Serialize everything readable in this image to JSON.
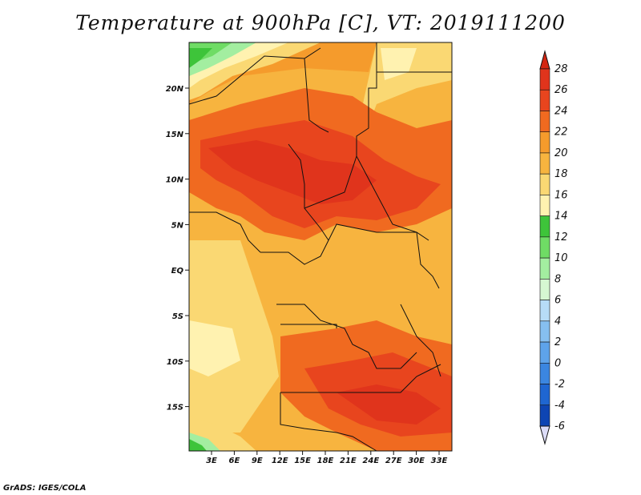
{
  "title": "Temperature at 900hPa [C], VT: 2019111200",
  "credit": "GrADS: IGES/COLA",
  "map": {
    "lon_labels": [
      "3E",
      "6E",
      "9E",
      "12E",
      "15E",
      "18E",
      "21E",
      "24E",
      "27E",
      "30E",
      "33E"
    ],
    "lat_labels": [
      "20N",
      "15N",
      "10N",
      "5N",
      "EQ",
      "5S",
      "10S",
      "15S"
    ]
  },
  "colorbar": {
    "levels": [
      {
        "value": "28",
        "color": "#e0341c"
      },
      {
        "value": "26",
        "color": "#e8451e"
      },
      {
        "value": "24",
        "color": "#f06a20"
      },
      {
        "value": "22",
        "color": "#f59b2c"
      },
      {
        "value": "20",
        "color": "#f7b43f"
      },
      {
        "value": "18",
        "color": "#fad873"
      },
      {
        "value": "16",
        "color": "#fff2b0"
      },
      {
        "value": "14",
        "color": "#3ec43a"
      },
      {
        "value": "12",
        "color": "#6fdc65"
      },
      {
        "value": "10",
        "color": "#a3eea0"
      },
      {
        "value": "8",
        "color": "#d6f7d2"
      },
      {
        "value": "6",
        "color": "#b7dcf7"
      },
      {
        "value": "4",
        "color": "#86bff0"
      },
      {
        "value": "2",
        "color": "#5ea3ea"
      },
      {
        "value": "0",
        "color": "#3b86e0"
      },
      {
        "value": "-2",
        "color": "#1f66d1"
      },
      {
        "value": "-4",
        "color": "#0e45b3"
      },
      {
        "value": "-6",
        "color": "#0a1f7a"
      }
    ],
    "top_arrow_color": "#d32612",
    "bottom_arrow_color": "#dcdcf7"
  }
}
